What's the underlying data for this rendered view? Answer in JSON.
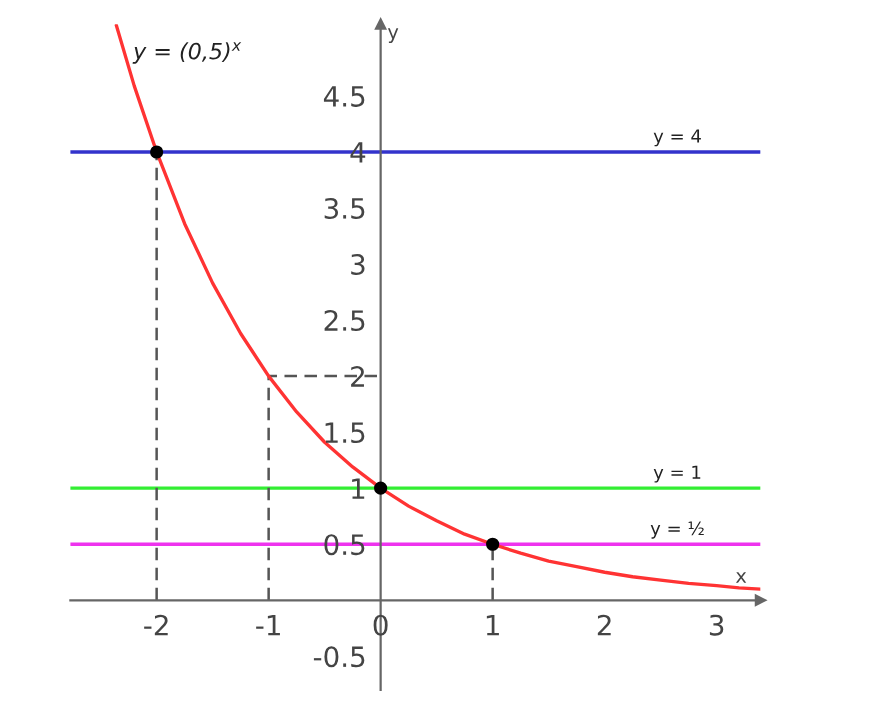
{
  "chart_data": {
    "type": "line",
    "xlabel": "x",
    "ylabel": "y",
    "xlim": [
      -2.77,
      3.39
    ],
    "ylim": [
      -0.8,
      5.14
    ],
    "xticks": [
      -2,
      -1,
      0,
      1,
      2,
      3
    ],
    "yticks": [
      -0.5,
      0.5,
      1,
      1.5,
      2,
      2.5,
      3,
      3.5,
      4,
      4.5
    ],
    "grid": false,
    "legend": false,
    "series": [
      {
        "name": "y = (0,5)$^{x}$",
        "color": "#ff3333",
        "line_style": "solid",
        "marker": "none",
        "x": [
          -2.36,
          -2.2,
          -2,
          -1.75,
          -1.5,
          -1.25,
          -1,
          -0.75,
          -0.5,
          -0.25,
          0,
          0.25,
          0.5,
          0.75,
          1,
          1.25,
          1.5,
          1.75,
          2,
          2.25,
          2.5,
          2.75,
          3,
          3.2,
          3.39
        ],
        "values": [
          5.13,
          4.59,
          4,
          3.36,
          2.83,
          2.38,
          2,
          1.68,
          1.41,
          1.19,
          1,
          0.84,
          0.71,
          0.59,
          0.5,
          0.42,
          0.35,
          0.3,
          0.25,
          0.21,
          0.18,
          0.15,
          0.13,
          0.11,
          0.1
        ]
      },
      {
        "type": "line",
        "color": "#555555",
        "line_style": "dashed",
        "marker": "none",
        "x": [
          -2,
          -2
        ],
        "values": [
          0,
          4
        ]
      },
      {
        "type": "line",
        "color": "#555555",
        "line_style": "dashed",
        "marker": "none",
        "x": [
          -1,
          -1,
          0
        ],
        "values": [
          0,
          2,
          2
        ]
      },
      {
        "type": "line",
        "color": "#555555",
        "line_style": "dashed",
        "marker": "none",
        "x": [
          1,
          1
        ],
        "values": [
          0,
          0.5
        ]
      },
      {
        "type": "scatter",
        "color": "#000000",
        "marker": "circle",
        "x": [
          -2,
          0,
          1
        ],
        "values": [
          4,
          1,
          0.5
        ]
      }
    ],
    "ref_lines": [
      {
        "axis": "y",
        "value": 4,
        "label": "y = 4",
        "color": "#3333cc"
      },
      {
        "axis": "y",
        "value": 1,
        "label": "y = 1",
        "color": "#33ee33"
      },
      {
        "axis": "y",
        "value": 0.5,
        "label": "y = ½",
        "color": "#ee33ee"
      }
    ]
  }
}
